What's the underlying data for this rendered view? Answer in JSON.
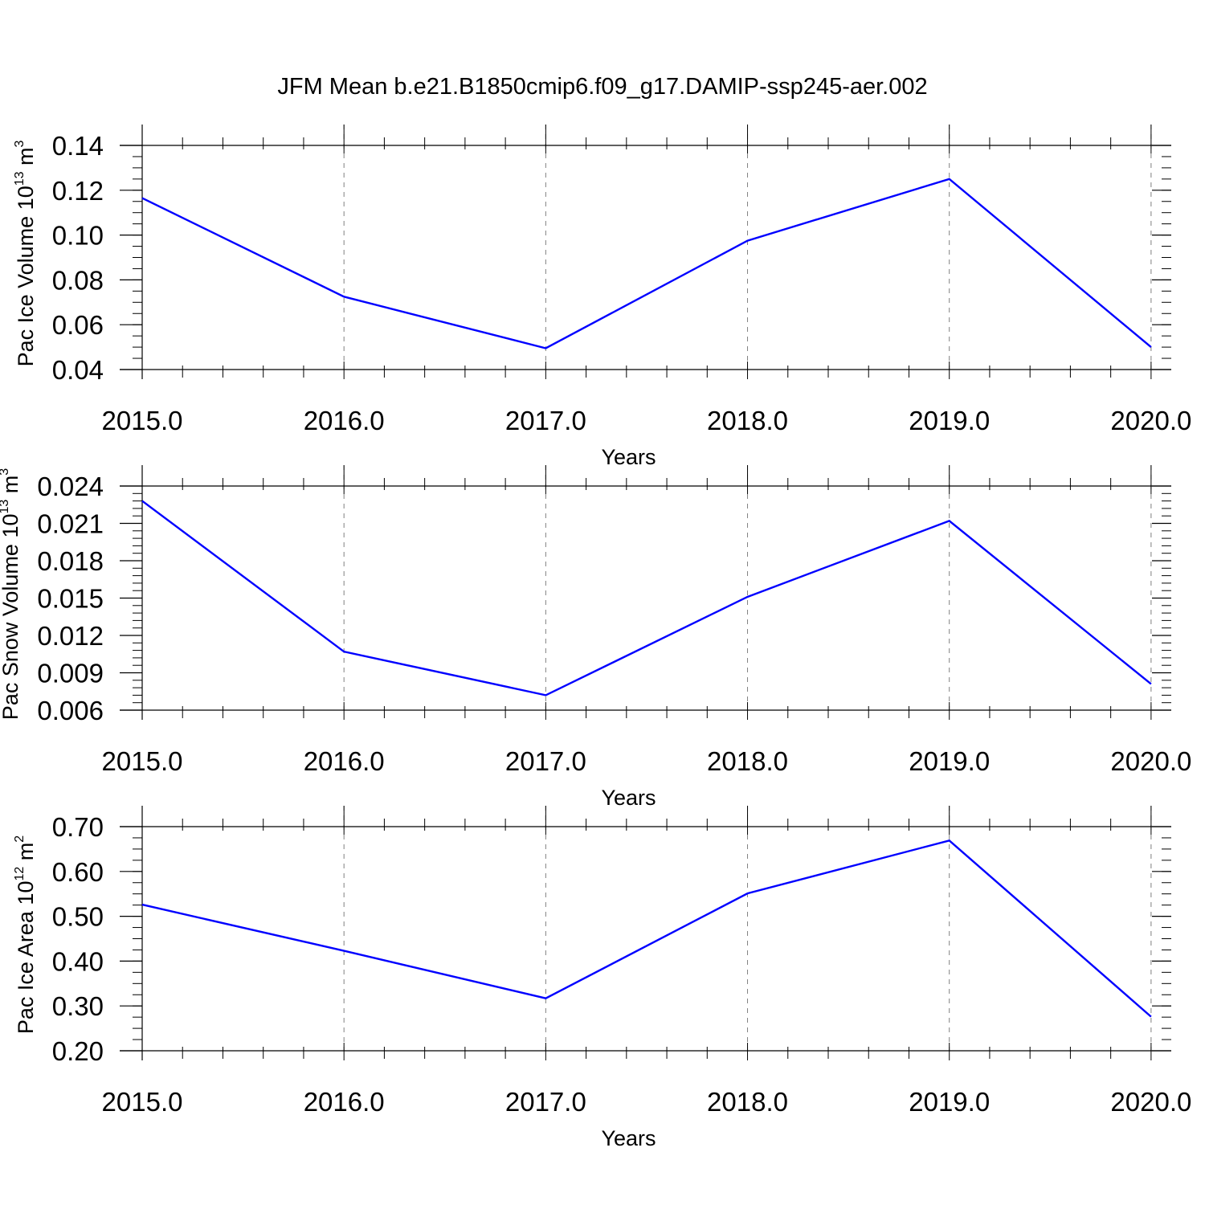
{
  "figure": {
    "title": "JFM Mean b.e21.B1850cmip6.f09_g17.DAMIP-ssp245-aer.002"
  },
  "chart_data": [
    {
      "type": "line",
      "title": "",
      "xlabel": "Years",
      "ylabel": {
        "main": "Pac Ice Volume 10",
        "exp": "13",
        "unit": " m",
        "unit_exp": "3"
      },
      "x": [
        2015,
        2016,
        2017,
        2018,
        2019,
        2020
      ],
      "x_tick_labels": [
        "2015.0",
        "2016.0",
        "2017.0",
        "2018.0",
        "2019.0",
        "2020.0"
      ],
      "xlim": [
        2015,
        2020.1
      ],
      "y_ticks": [
        0.04,
        0.06,
        0.08,
        0.1,
        0.12,
        0.14
      ],
      "y_tick_labels": [
        "0.04",
        "0.06",
        "0.08",
        "0.10",
        "0.12",
        "0.14"
      ],
      "ylim": [
        0.04,
        0.14
      ],
      "y_minor_step": 0.005,
      "grid": "vertical dashed at major x ticks",
      "series": [
        {
          "values": [
            0.1165,
            0.0725,
            0.0495,
            0.0975,
            0.125,
            0.05
          ],
          "color": "#0000ff"
        }
      ]
    },
    {
      "type": "line",
      "title": "",
      "xlabel": "Years",
      "ylabel": {
        "main": "Pac Snow Volume 10",
        "exp": "13",
        "unit": " m",
        "unit_exp": "3"
      },
      "x": [
        2015,
        2016,
        2017,
        2018,
        2019,
        2020
      ],
      "x_tick_labels": [
        "2015.0",
        "2016.0",
        "2017.0",
        "2018.0",
        "2019.0",
        "2020.0"
      ],
      "xlim": [
        2015,
        2020.1
      ],
      "y_ticks": [
        0.006,
        0.009,
        0.012,
        0.015,
        0.018,
        0.021,
        0.024
      ],
      "y_tick_labels": [
        "0.006",
        "0.009",
        "0.012",
        "0.015",
        "0.018",
        "0.021",
        "0.024"
      ],
      "ylim": [
        0.006,
        0.024
      ],
      "y_minor_step": 0.0006,
      "grid": "vertical dashed at major x ticks",
      "series": [
        {
          "values": [
            0.0228,
            0.0107,
            0.0072,
            0.0151,
            0.0212,
            0.0081
          ],
          "color": "#0000ff"
        }
      ]
    },
    {
      "type": "line",
      "title": "",
      "xlabel": "Years",
      "ylabel": {
        "main": "Pac Ice Area 10",
        "exp": "12",
        "unit": " m",
        "unit_exp": "2"
      },
      "x": [
        2015,
        2016,
        2017,
        2018,
        2019,
        2020
      ],
      "x_tick_labels": [
        "2015.0",
        "2016.0",
        "2017.0",
        "2018.0",
        "2019.0",
        "2020.0"
      ],
      "xlim": [
        2015,
        2020.1
      ],
      "y_ticks": [
        0.2,
        0.3,
        0.4,
        0.5,
        0.6,
        0.7
      ],
      "y_tick_labels": [
        "0.20",
        "0.30",
        "0.40",
        "0.50",
        "0.60",
        "0.70"
      ],
      "ylim": [
        0.2,
        0.7
      ],
      "y_minor_step": 0.025,
      "grid": "vertical dashed at major x ticks",
      "series": [
        {
          "values": [
            0.526,
            0.423,
            0.317,
            0.551,
            0.669,
            0.276
          ],
          "color": "#0000ff"
        }
      ]
    }
  ]
}
